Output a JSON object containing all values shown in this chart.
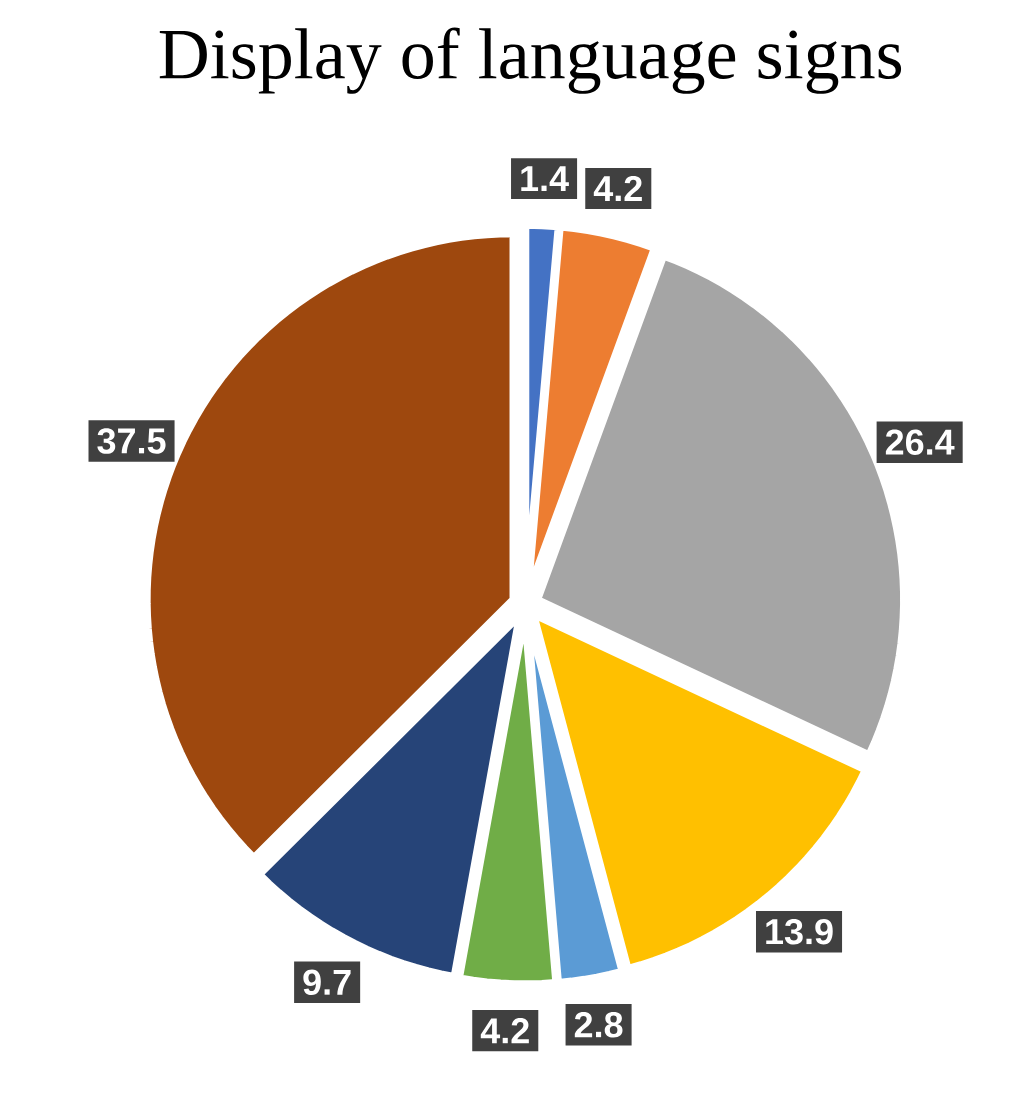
{
  "chart_data": {
    "type": "pie",
    "title": "Display of language signs",
    "categories": [
      null,
      null,
      null,
      null,
      null,
      null,
      null,
      null
    ],
    "values": [
      1.4,
      4.2,
      26.4,
      13.9,
      2.8,
      4.2,
      9.7,
      37.5
    ],
    "colors": [
      "#4472c4",
      "#ed7d31",
      "#a5a5a5",
      "#ffc000",
      "#5b9bd5",
      "#70ad47",
      "#264478",
      "#9e480e"
    ],
    "data_labels": true
  }
}
